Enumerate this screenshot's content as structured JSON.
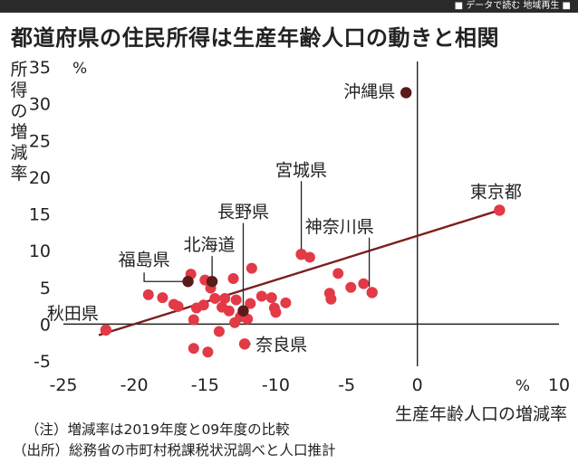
{
  "header": {
    "series_label": "■ データで読む 地域再生 ■"
  },
  "chart_data": {
    "type": "scatter",
    "title": "都道府県の住民所得は生産年齢人口の動きと相関",
    "xlabel": "生産年齢人口の増減率",
    "ylabel": "所得の増減率",
    "x_unit": "%",
    "y_unit": "%",
    "xlim": [
      -25,
      10
    ],
    "ylim": [
      -5,
      35
    ],
    "x_ticks": [
      -25,
      -20,
      -15,
      -10,
      -5,
      0,
      10
    ],
    "y_ticks": [
      -5,
      0,
      5,
      10,
      15,
      20,
      25,
      30,
      35
    ],
    "grid": false,
    "colors": {
      "point": "#e23a46",
      "highlight": "#5a1a1a",
      "trend": "#7d1e1e",
      "axis": "#222222"
    },
    "trendline": {
      "x": [
        -22.5,
        5.8
      ],
      "y": [
        -1.5,
        15.5
      ]
    },
    "labeled_points": [
      {
        "name": "沖縄県",
        "x": -0.8,
        "y": 31.5,
        "highlight": true
      },
      {
        "name": "東京都",
        "x": 5.8,
        "y": 15.5,
        "highlight": false
      },
      {
        "name": "宮城県",
        "x": -8.2,
        "y": 9.5,
        "highlight": false
      },
      {
        "name": "神奈川県",
        "x": -3.2,
        "y": 4.3,
        "highlight": false
      },
      {
        "name": "長野県",
        "x": -12.3,
        "y": 1.8,
        "highlight": true
      },
      {
        "name": "北海道",
        "x": -14.5,
        "y": 5.8,
        "highlight": true
      },
      {
        "name": "福島県",
        "x": -16.2,
        "y": 5.8,
        "highlight": true
      },
      {
        "name": "秋田県",
        "x": -22.0,
        "y": -0.8,
        "highlight": false
      },
      {
        "name": "奈良県",
        "x": -12.2,
        "y": -2.7,
        "highlight": false
      }
    ],
    "points": [
      {
        "x": -19.0,
        "y": 4.0
      },
      {
        "x": -18.0,
        "y": 3.6
      },
      {
        "x": -17.2,
        "y": 2.7
      },
      {
        "x": -16.9,
        "y": 2.4
      },
      {
        "x": -16.0,
        "y": 6.8
      },
      {
        "x": -15.6,
        "y": 2.2
      },
      {
        "x": -15.1,
        "y": 2.6
      },
      {
        "x": -15.0,
        "y": 6.0
      },
      {
        "x": -15.8,
        "y": 0.6
      },
      {
        "x": -14.6,
        "y": 4.9
      },
      {
        "x": -14.3,
        "y": 3.5
      },
      {
        "x": -13.8,
        "y": 2.3
      },
      {
        "x": -13.6,
        "y": 3.5
      },
      {
        "x": -13.3,
        "y": 1.8
      },
      {
        "x": -13.0,
        "y": 6.2
      },
      {
        "x": -12.8,
        "y": 3.3
      },
      {
        "x": -12.5,
        "y": 1.0
      },
      {
        "x": -12.0,
        "y": 0.7
      },
      {
        "x": -11.8,
        "y": 2.8
      },
      {
        "x": -11.7,
        "y": 7.6
      },
      {
        "x": -11.0,
        "y": 3.8
      },
      {
        "x": -10.3,
        "y": 3.6
      },
      {
        "x": -10.1,
        "y": 2.2
      },
      {
        "x": -10.0,
        "y": 1.6
      },
      {
        "x": -9.3,
        "y": 2.9
      },
      {
        "x": -7.6,
        "y": 9.1
      },
      {
        "x": -6.2,
        "y": 4.2
      },
      {
        "x": -6.1,
        "y": 3.4
      },
      {
        "x": -5.6,
        "y": 6.9
      },
      {
        "x": -4.7,
        "y": 5.0
      },
      {
        "x": -3.8,
        "y": 5.5
      },
      {
        "x": -15.8,
        "y": -3.3
      },
      {
        "x": -14.8,
        "y": -3.8
      },
      {
        "x": -14.0,
        "y": -1.0
      },
      {
        "x": -12.9,
        "y": 0.2
      }
    ],
    "notes": [
      "（注）増減率は2019年度と09年度の比較",
      "（出所）総務省の市町村税課税状況調べと人口推計"
    ]
  }
}
